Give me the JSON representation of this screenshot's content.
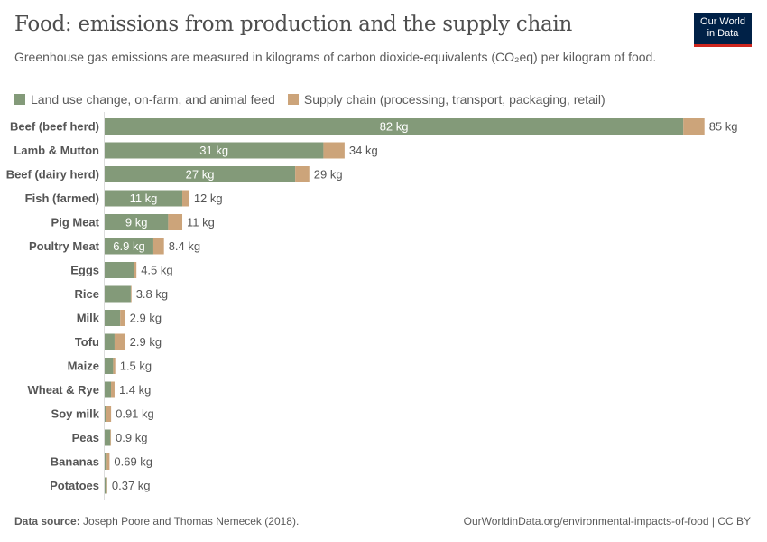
{
  "title": "Food: emissions from production and the supply chain",
  "subtitle": "Greenhouse gas emissions are measured in kilograms of carbon dioxide-equivalents (CO₂eq) per kilogram of food.",
  "logo": {
    "line1": "Our World",
    "line2": "in Data",
    "bg": "#002147",
    "accent": "#ce261e"
  },
  "footer": {
    "source_label": "Data source:",
    "source": "Joseph Poore and Thomas Nemecek (2018).",
    "link": "OurWorldinData.org/environmental-impacts-of-food | CC BY"
  },
  "chart_data": {
    "type": "bar",
    "orientation": "horizontal",
    "stacked": true,
    "unit": "kg",
    "categories": [
      "Beef (beef herd)",
      "Lamb & Mutton",
      "Beef (dairy herd)",
      "Fish (farmed)",
      "Pig Meat",
      "Poultry Meat",
      "Eggs",
      "Rice",
      "Milk",
      "Tofu",
      "Maize",
      "Wheat & Rye",
      "Soy milk",
      "Peas",
      "Bananas",
      "Potatoes"
    ],
    "series": [
      {
        "name": "Land use change, on-farm, and animal feed",
        "color": "#839a79",
        "values": [
          82,
          31,
          27,
          11,
          9,
          6.9,
          4.2,
          3.7,
          2.2,
          1.4,
          1.2,
          0.9,
          0.2,
          0.8,
          0.3,
          0.3
        ],
        "labels": [
          "82 kg",
          "31 kg",
          "27 kg",
          "11 kg",
          "9 kg",
          "6.9 kg",
          "",
          "",
          "",
          "",
          "",
          "",
          "",
          "",
          "",
          ""
        ]
      },
      {
        "name": "Supply chain (processing, transport, packaging, retail)",
        "color": "#cca47a",
        "values": [
          3,
          3,
          2,
          1,
          2,
          1.5,
          0.3,
          0.1,
          0.7,
          1.5,
          0.3,
          0.5,
          0.71,
          0.1,
          0.39,
          0.07
        ]
      }
    ],
    "totals": [
      "85 kg",
      "34 kg",
      "29 kg",
      "12 kg",
      "11 kg",
      "8.4 kg",
      "4.5 kg",
      "3.8 kg",
      "2.9 kg",
      "2.9 kg",
      "1.5 kg",
      "1.4 kg",
      "0.91 kg",
      "0.9 kg",
      "0.69 kg",
      "0.37 kg"
    ],
    "legend": "top-left",
    "grid": false
  }
}
